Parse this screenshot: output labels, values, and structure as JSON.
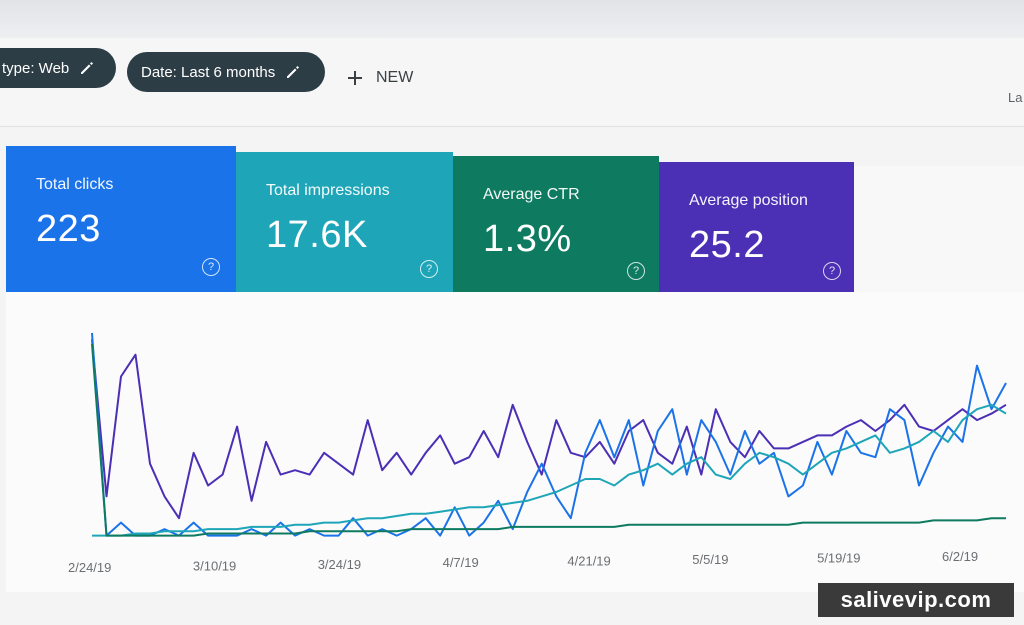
{
  "filters": {
    "type_chip": "type: Web",
    "date_chip": "Date: Last 6 months",
    "new_label": "NEW",
    "last_updated_partial": "La"
  },
  "metrics": [
    {
      "label": "Total clicks",
      "value": "223",
      "color": "#1a73e8"
    },
    {
      "label": "Total impressions",
      "value": "17.6K",
      "color": "#1ea6b8"
    },
    {
      "label": "Average CTR",
      "value": "1.3%",
      "color": "#0e7b61"
    },
    {
      "label": "Average position",
      "value": "25.2",
      "color": "#4b2fb5"
    }
  ],
  "chart_data": {
    "type": "line",
    "x_ticks": [
      "2/24/19",
      "3/10/19",
      "3/24/19",
      "4/7/19",
      "4/21/19",
      "5/5/19",
      "5/19/19",
      "6/2/19"
    ],
    "series": [
      {
        "color": "#4b2fb5",
        "values": [
          0.92,
          0.2,
          0.75,
          0.85,
          0.35,
          0.2,
          0.1,
          0.4,
          0.25,
          0.3,
          0.52,
          0.18,
          0.45,
          0.3,
          0.32,
          0.3,
          0.4,
          0.35,
          0.3,
          0.55,
          0.32,
          0.4,
          0.3,
          0.4,
          0.48,
          0.35,
          0.38,
          0.5,
          0.38,
          0.62,
          0.45,
          0.3,
          0.55,
          0.4,
          0.38,
          0.45,
          0.35,
          0.5,
          0.55,
          0.4,
          0.35,
          0.52,
          0.3,
          0.6,
          0.45,
          0.38,
          0.5,
          0.42,
          0.42,
          0.45,
          0.48,
          0.48,
          0.52,
          0.55,
          0.5,
          0.55,
          0.62,
          0.52,
          0.5,
          0.55,
          0.6,
          0.55,
          0.58,
          0.62
        ]
      },
      {
        "color": "#1a73e8",
        "values": [
          0.95,
          0.02,
          0.08,
          0.02,
          0.02,
          0.05,
          0.02,
          0.08,
          0.02,
          0.02,
          0.02,
          0.05,
          0.02,
          0.08,
          0.02,
          0.05,
          0.02,
          0.02,
          0.1,
          0.02,
          0.05,
          0.02,
          0.05,
          0.1,
          0.02,
          0.15,
          0.02,
          0.08,
          0.18,
          0.05,
          0.22,
          0.35,
          0.2,
          0.1,
          0.4,
          0.55,
          0.38,
          0.55,
          0.25,
          0.5,
          0.6,
          0.3,
          0.55,
          0.45,
          0.3,
          0.5,
          0.35,
          0.4,
          0.2,
          0.25,
          0.45,
          0.3,
          0.5,
          0.4,
          0.38,
          0.6,
          0.55,
          0.25,
          0.4,
          0.52,
          0.45,
          0.8,
          0.6,
          0.72
        ]
      },
      {
        "color": "#1ea6b8",
        "values": [
          0.02,
          0.02,
          0.02,
          0.03,
          0.03,
          0.04,
          0.04,
          0.04,
          0.05,
          0.05,
          0.05,
          0.06,
          0.06,
          0.06,
          0.07,
          0.07,
          0.08,
          0.08,
          0.09,
          0.1,
          0.1,
          0.11,
          0.12,
          0.12,
          0.13,
          0.14,
          0.15,
          0.15,
          0.16,
          0.17,
          0.18,
          0.2,
          0.22,
          0.25,
          0.28,
          0.28,
          0.25,
          0.3,
          0.32,
          0.35,
          0.3,
          0.35,
          0.38,
          0.3,
          0.28,
          0.35,
          0.4,
          0.38,
          0.35,
          0.3,
          0.35,
          0.4,
          0.42,
          0.45,
          0.48,
          0.4,
          0.42,
          0.45,
          0.5,
          0.45,
          0.55,
          0.6,
          0.62,
          0.58
        ]
      },
      {
        "color": "#0e7b61",
        "values": [
          0.9,
          0.02,
          0.02,
          0.02,
          0.02,
          0.02,
          0.02,
          0.02,
          0.03,
          0.03,
          0.03,
          0.03,
          0.03,
          0.03,
          0.03,
          0.04,
          0.04,
          0.04,
          0.04,
          0.04,
          0.04,
          0.04,
          0.05,
          0.05,
          0.05,
          0.05,
          0.05,
          0.05,
          0.05,
          0.06,
          0.06,
          0.06,
          0.06,
          0.06,
          0.06,
          0.06,
          0.06,
          0.07,
          0.07,
          0.07,
          0.07,
          0.07,
          0.07,
          0.07,
          0.07,
          0.07,
          0.07,
          0.07,
          0.07,
          0.08,
          0.08,
          0.08,
          0.08,
          0.08,
          0.08,
          0.08,
          0.08,
          0.08,
          0.09,
          0.09,
          0.09,
          0.09,
          0.1,
          0.1
        ]
      }
    ],
    "grid": false,
    "legend": "none"
  },
  "watermark": "salivevip.com"
}
